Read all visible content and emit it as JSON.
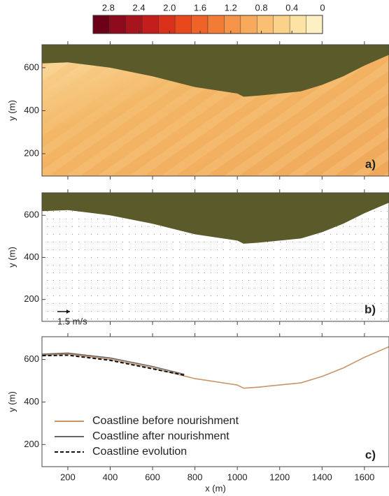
{
  "chart_data": [
    {
      "type": "colorbar",
      "lim": [
        3.0,
        0
      ],
      "ticks": [
        2.8,
        2.4,
        {
          "value": 2,
          "label": "2.0"
        },
        1.6,
        1.2,
        0.8,
        0.4,
        0
      ],
      "colors": [
        "#6b0018",
        "#8c0a1c",
        "#a8141e",
        "#c41e1c",
        "#d9301a",
        "#e8481c",
        "#ef6228",
        "#f27b36",
        "#f59448",
        "#f7aa5c",
        "#f9bf72",
        "#fbd28a",
        "#fce3a4",
        "#fdf1c4"
      ]
    },
    {
      "type": "heatmap",
      "panel_label": "a)",
      "ylabel": "y (m)",
      "xlim": [
        78,
        1716
      ],
      "ylim": [
        96,
        707
      ],
      "xticks": [
        200,
        400,
        600,
        800,
        1000,
        1200,
        1400,
        1600
      ],
      "yticks": [
        200,
        400,
        600
      ],
      "land_color": "#5b5a2a"
    },
    {
      "type": "vector",
      "panel_label": "b)",
      "ylabel": "y (m)",
      "xlim": [
        78,
        1716
      ],
      "ylim": [
        96,
        707
      ],
      "xticks": [
        200,
        400,
        600,
        800,
        1000,
        1200,
        1400,
        1600
      ],
      "yticks": [
        200,
        400,
        600
      ],
      "land_color": "#5b5a2a",
      "scale_label": "1.5 m/s"
    },
    {
      "type": "line",
      "panel_label": "c)",
      "ylabel": "y (m)",
      "xlabel": "x (m)",
      "xlim": [
        78,
        1716
      ],
      "ylim": [
        96,
        707
      ],
      "xticks": [
        200,
        400,
        600,
        800,
        1000,
        1200,
        1400,
        1600
      ],
      "yticks": [
        200,
        400,
        600
      ],
      "series": [
        {
          "name": "Coastline before nourishment",
          "color": "#c8946a",
          "dash": false,
          "x": [
            80,
            200,
            400,
            600,
            800,
            1000,
            1030,
            1100,
            1200,
            1300,
            1400,
            1500,
            1600,
            1716
          ],
          "values": [
            620,
            625,
            600,
            560,
            510,
            480,
            465,
            470,
            480,
            490,
            520,
            560,
            610,
            660
          ]
        },
        {
          "name": "Coastline after nourishment",
          "color": "#666666",
          "dash": false,
          "x": [
            80,
            200,
            400,
            600,
            750
          ],
          "values": [
            625,
            630,
            607,
            567,
            530
          ]
        },
        {
          "name": "Coastline evolution",
          "color": "#111111",
          "dash": true,
          "x": [
            80,
            200,
            400,
            600,
            750
          ],
          "values": [
            618,
            620,
            596,
            556,
            526
          ]
        }
      ]
    }
  ]
}
